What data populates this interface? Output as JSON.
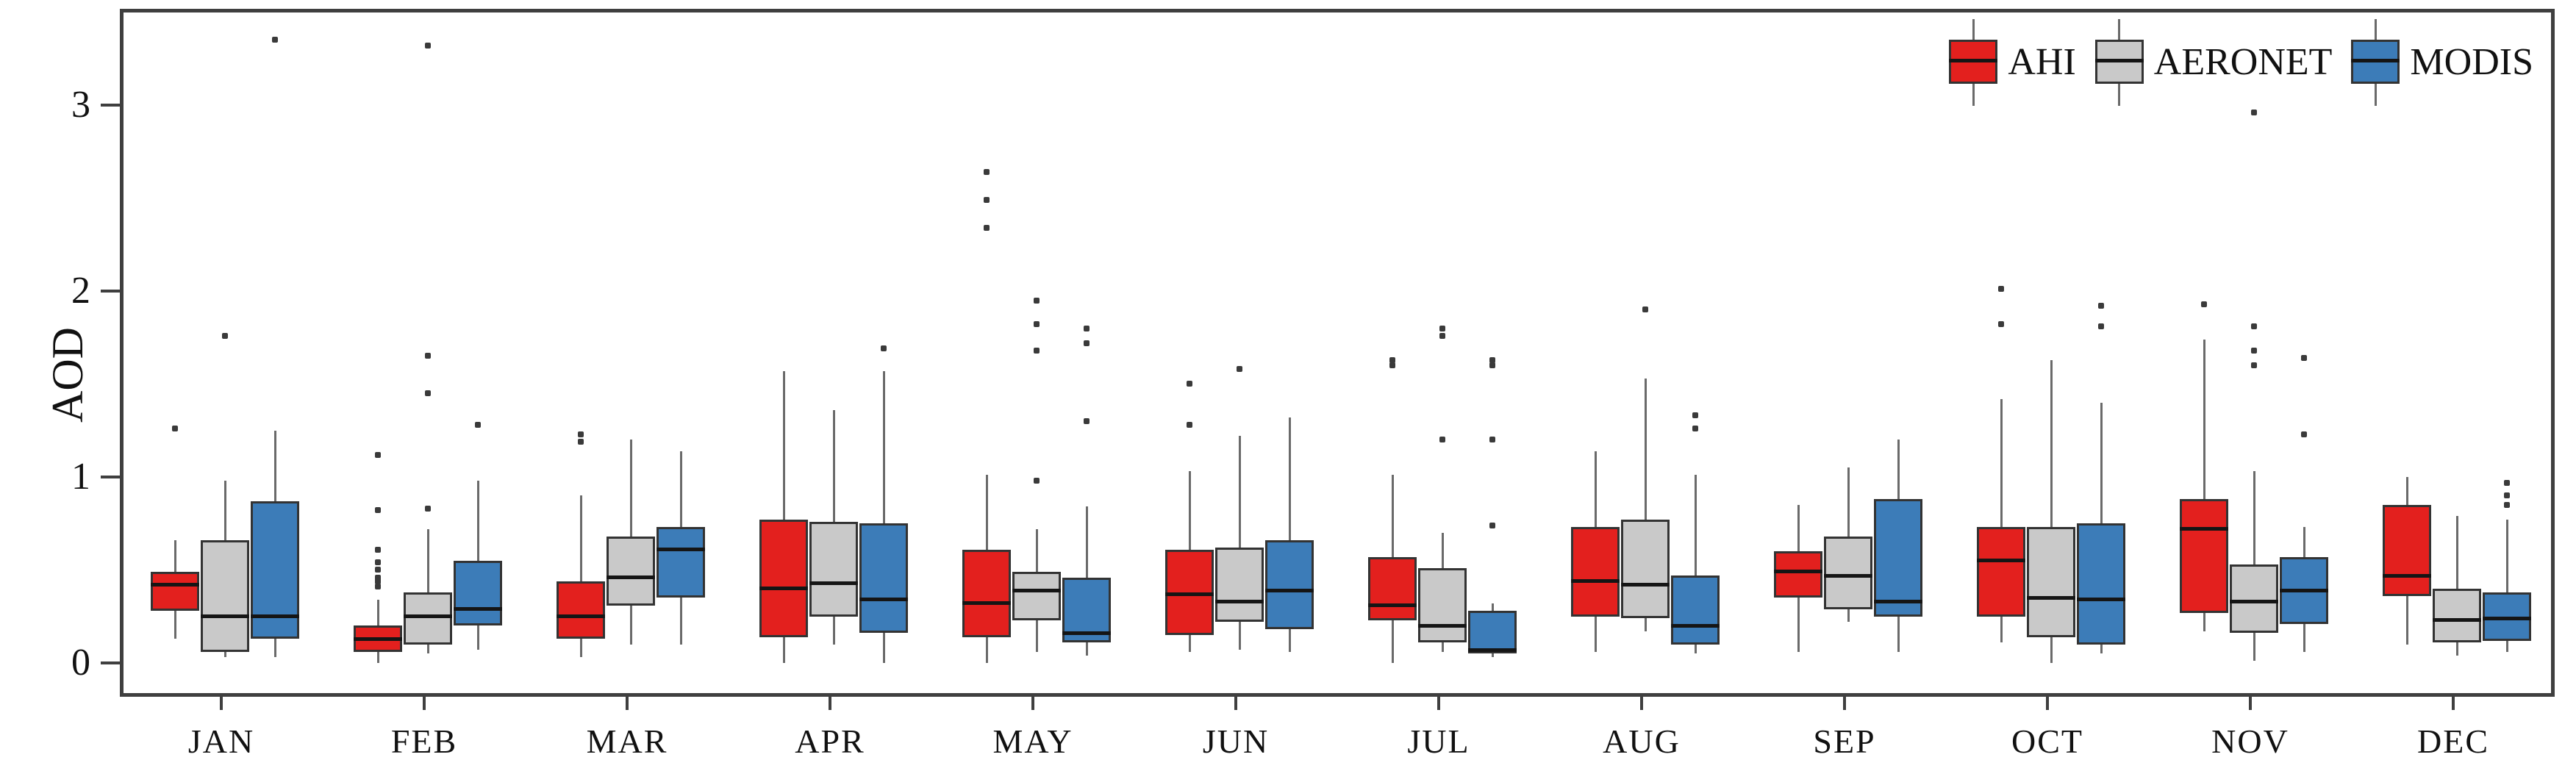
{
  "chart_data": {
    "type": "boxplot",
    "title": "",
    "ylabel": "AOD",
    "xlabel": "",
    "yticks": [
      0,
      1,
      2,
      3
    ],
    "ylim": [
      -0.18,
      3.52
    ],
    "grid": false,
    "legend_position": "top-right",
    "categories": [
      "JAN",
      "FEB",
      "MAR",
      "APR",
      "MAY",
      "JUN",
      "JUL",
      "AUG",
      "SEP",
      "OCT",
      "NOV",
      "DEC"
    ],
    "series": [
      {
        "name": "AHI",
        "color": "#e3201e",
        "boxes": [
          {
            "low": 0.15,
            "q1": 0.3,
            "med": 0.44,
            "q3": 0.51,
            "high": 0.68,
            "outliers": [
              1.28
            ]
          },
          {
            "low": 0.02,
            "q1": 0.08,
            "med": 0.15,
            "q3": 0.22,
            "high": 0.36,
            "outliers": [
              0.43,
              0.46,
              0.48,
              0.52,
              0.56,
              0.63,
              0.84,
              1.14
            ]
          },
          {
            "low": 0.05,
            "q1": 0.15,
            "med": 0.27,
            "q3": 0.46,
            "high": 0.92,
            "outliers": [
              1.21,
              1.25
            ]
          },
          {
            "low": 0.02,
            "q1": 0.16,
            "med": 0.42,
            "q3": 0.79,
            "high": 1.59,
            "outliers": []
          },
          {
            "low": 0.02,
            "q1": 0.16,
            "med": 0.34,
            "q3": 0.63,
            "high": 1.03,
            "outliers": [
              2.36,
              2.51,
              2.66
            ]
          },
          {
            "low": 0.08,
            "q1": 0.17,
            "med": 0.39,
            "q3": 0.63,
            "high": 1.05,
            "outliers": [
              1.3,
              1.52
            ]
          },
          {
            "low": 0.02,
            "q1": 0.25,
            "med": 0.33,
            "q3": 0.59,
            "high": 1.03,
            "outliers": [
              1.62,
              1.65
            ]
          },
          {
            "low": 0.08,
            "q1": 0.27,
            "med": 0.46,
            "q3": 0.75,
            "high": 1.16,
            "outliers": []
          },
          {
            "low": 0.08,
            "q1": 0.37,
            "med": 0.51,
            "q3": 0.62,
            "high": 0.87,
            "outliers": []
          },
          {
            "low": 0.13,
            "q1": 0.27,
            "med": 0.57,
            "q3": 0.75,
            "high": 1.44,
            "outliers": [
              1.84,
              2.03
            ]
          },
          {
            "low": 0.19,
            "q1": 0.29,
            "med": 0.74,
            "q3": 0.9,
            "high": 1.76,
            "outliers": [
              1.95
            ]
          },
          {
            "low": 0.12,
            "q1": 0.38,
            "med": 0.49,
            "q3": 0.87,
            "high": 1.02,
            "outliers": []
          }
        ]
      },
      {
        "name": "AERONET",
        "color": "#c9c9c9",
        "boxes": [
          {
            "low": 0.05,
            "q1": 0.08,
            "med": 0.27,
            "q3": 0.68,
            "high": 1.0,
            "outliers": [
              1.78
            ]
          },
          {
            "low": 0.07,
            "q1": 0.12,
            "med": 0.27,
            "q3": 0.4,
            "high": 0.74,
            "outliers": [
              0.85,
              1.47,
              1.67,
              3.34
            ]
          },
          {
            "low": 0.12,
            "q1": 0.33,
            "med": 0.48,
            "q3": 0.7,
            "high": 1.22,
            "outliers": []
          },
          {
            "low": 0.12,
            "q1": 0.27,
            "med": 0.45,
            "q3": 0.78,
            "high": 1.38,
            "outliers": []
          },
          {
            "low": 0.08,
            "q1": 0.25,
            "med": 0.41,
            "q3": 0.51,
            "high": 0.74,
            "outliers": [
              1.0,
              1.7,
              1.84,
              1.97
            ]
          },
          {
            "low": 0.09,
            "q1": 0.24,
            "med": 0.35,
            "q3": 0.64,
            "high": 1.24,
            "outliers": [
              1.6
            ]
          },
          {
            "low": 0.08,
            "q1": 0.13,
            "med": 0.22,
            "q3": 0.53,
            "high": 0.72,
            "outliers": [
              1.22,
              1.78,
              1.82
            ]
          },
          {
            "low": 0.19,
            "q1": 0.26,
            "med": 0.44,
            "q3": 0.79,
            "high": 1.55,
            "outliers": [
              1.92
            ]
          },
          {
            "low": 0.24,
            "q1": 0.31,
            "med": 0.49,
            "q3": 0.7,
            "high": 1.07,
            "outliers": []
          },
          {
            "low": 0.02,
            "q1": 0.16,
            "med": 0.37,
            "q3": 0.75,
            "high": 1.65,
            "outliers": []
          },
          {
            "low": 0.03,
            "q1": 0.18,
            "med": 0.35,
            "q3": 0.55,
            "high": 1.05,
            "outliers": [
              1.62,
              1.7,
              1.83,
              2.98
            ]
          },
          {
            "low": 0.06,
            "q1": 0.13,
            "med": 0.25,
            "q3": 0.42,
            "high": 0.81,
            "outliers": []
          }
        ]
      },
      {
        "name": "MODIS",
        "color": "#3c7cb8",
        "boxes": [
          {
            "low": 0.05,
            "q1": 0.15,
            "med": 0.27,
            "q3": 0.89,
            "high": 1.27,
            "outliers": [
              3.37
            ]
          },
          {
            "low": 0.09,
            "q1": 0.22,
            "med": 0.31,
            "q3": 0.57,
            "high": 1.0,
            "outliers": [
              1.3
            ]
          },
          {
            "low": 0.12,
            "q1": 0.37,
            "med": 0.63,
            "q3": 0.75,
            "high": 1.16,
            "outliers": []
          },
          {
            "low": 0.02,
            "q1": 0.18,
            "med": 0.36,
            "q3": 0.77,
            "high": 1.59,
            "outliers": [
              1.71
            ]
          },
          {
            "low": 0.06,
            "q1": 0.13,
            "med": 0.18,
            "q3": 0.48,
            "high": 0.86,
            "outliers": [
              1.32,
              1.74,
              1.82
            ]
          },
          {
            "low": 0.08,
            "q1": 0.2,
            "med": 0.41,
            "q3": 0.68,
            "high": 1.34,
            "outliers": []
          },
          {
            "low": 0.05,
            "q1": 0.07,
            "med": 0.09,
            "q3": 0.3,
            "high": 0.34,
            "outliers": [
              0.76,
              1.22,
              1.62,
              1.65
            ]
          },
          {
            "low": 0.07,
            "q1": 0.12,
            "med": 0.22,
            "q3": 0.49,
            "high": 1.03,
            "outliers": [
              1.28,
              1.35
            ]
          },
          {
            "low": 0.08,
            "q1": 0.27,
            "med": 0.35,
            "q3": 0.9,
            "high": 1.22,
            "outliers": []
          },
          {
            "low": 0.07,
            "q1": 0.12,
            "med": 0.36,
            "q3": 0.77,
            "high": 1.42,
            "outliers": [
              1.83,
              1.94
            ]
          },
          {
            "low": 0.08,
            "q1": 0.23,
            "med": 0.41,
            "q3": 0.59,
            "high": 0.75,
            "outliers": [
              1.25,
              1.66
            ]
          },
          {
            "low": 0.08,
            "q1": 0.14,
            "med": 0.26,
            "q3": 0.4,
            "high": 0.79,
            "outliers": [
              0.87,
              0.92,
              0.99
            ]
          }
        ]
      }
    ]
  },
  "legend": {
    "items": [
      {
        "label": "AHI"
      },
      {
        "label": "AERONET"
      },
      {
        "label": "MODIS"
      }
    ]
  },
  "axes": {
    "y_title": "AOD"
  }
}
